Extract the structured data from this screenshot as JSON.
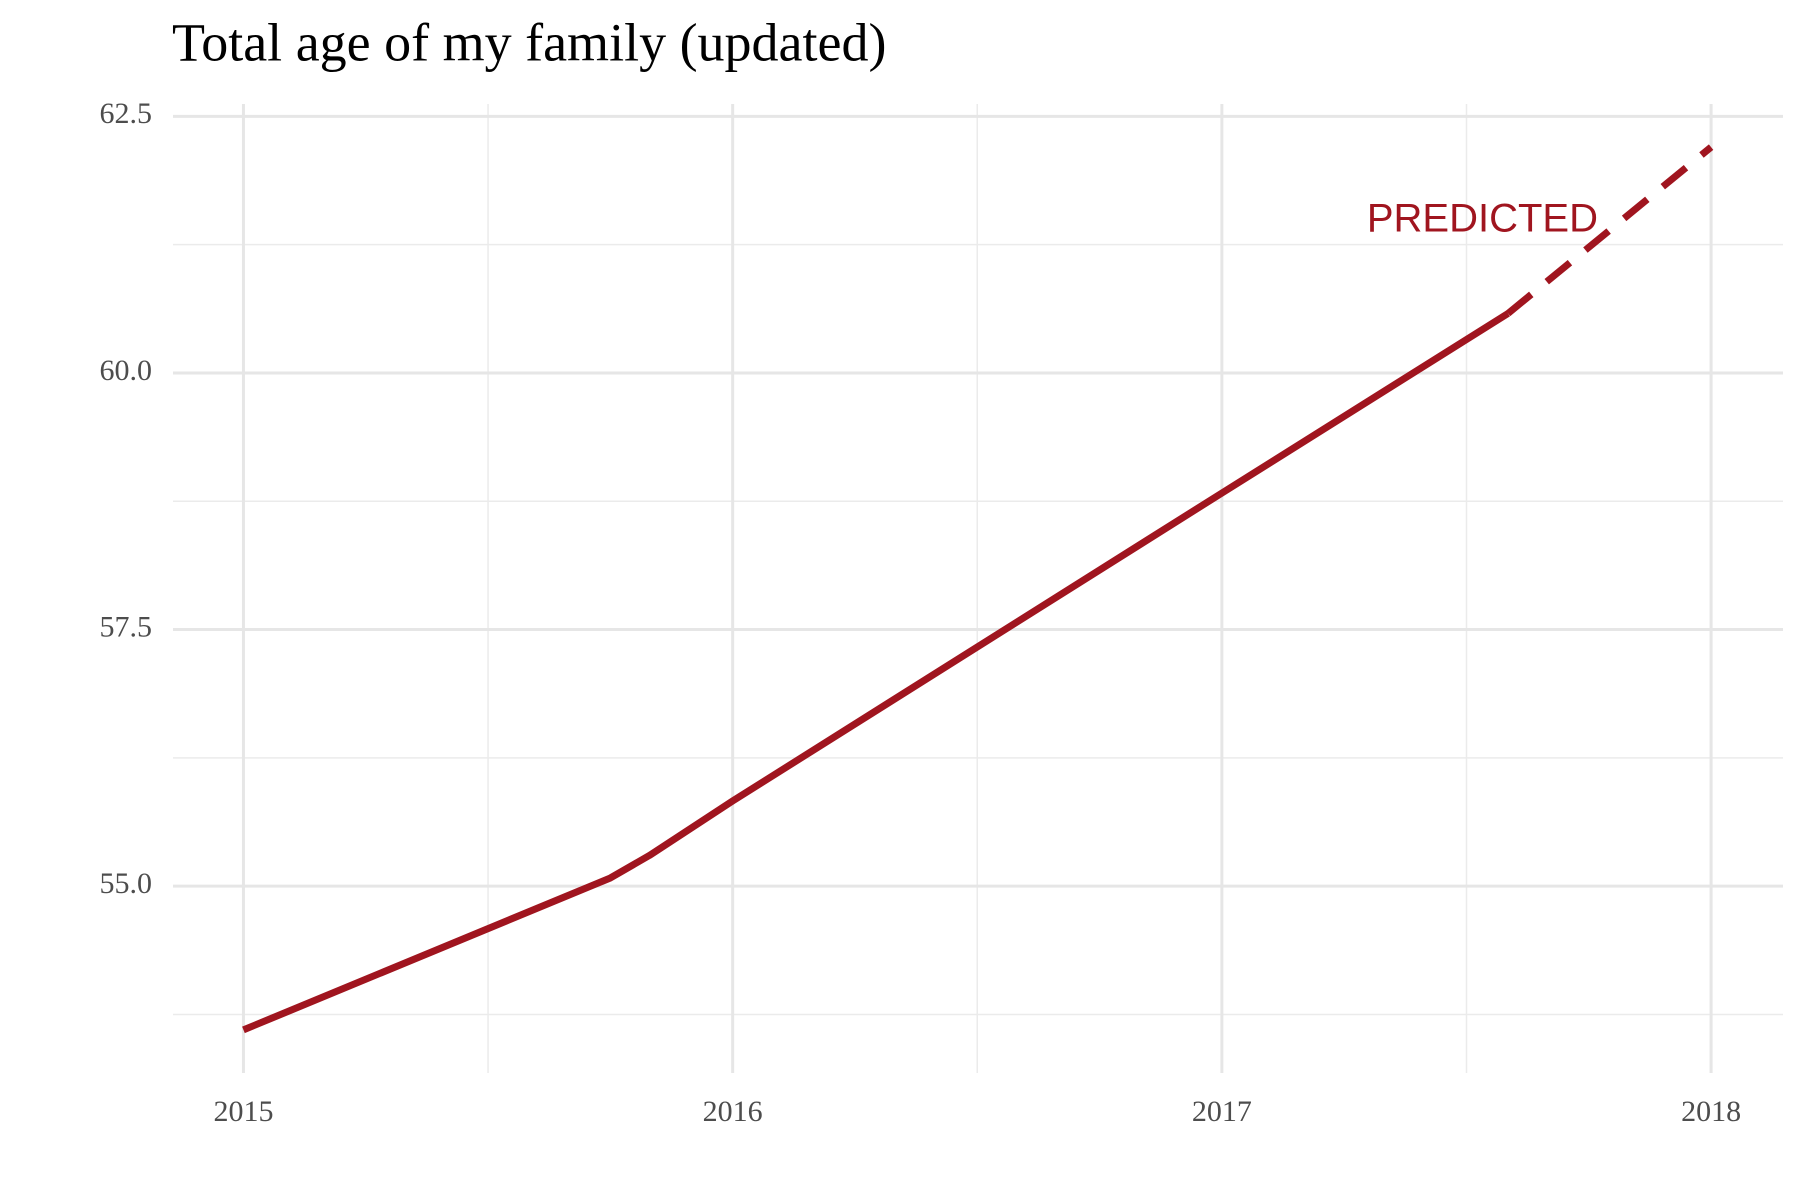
{
  "chart_data": {
    "type": "line",
    "title": "Total age of my family (updated)",
    "x": [
      2015,
      2015.75,
      2015.83,
      2016,
      2017,
      2017.585,
      2018
    ],
    "series": [
      {
        "color": "#a0151f",
        "dash": false,
        "values": [
          53.6,
          55.08,
          55.3,
          55.83,
          58.83,
          60.58,
          null
        ]
      },
      {
        "color": "#a0151f",
        "dash": true,
        "values": [
          null,
          null,
          null,
          null,
          null,
          60.58,
          62.2
        ]
      }
    ],
    "annotation": {
      "text": "PREDICTED",
      "color": "#a0151f"
    },
    "xlim": [
      2014.856,
      2018.147
    ],
    "xticks": [
      2015,
      2016,
      2017,
      2018
    ],
    "ylim": [
      53.18,
      62.62
    ],
    "yticks": [
      {
        "value": 55,
        "label": "55.0"
      },
      57.5,
      {
        "value": 60,
        "label": "60.0"
      },
      62.5
    ],
    "grid": true,
    "minor_grid": true
  }
}
